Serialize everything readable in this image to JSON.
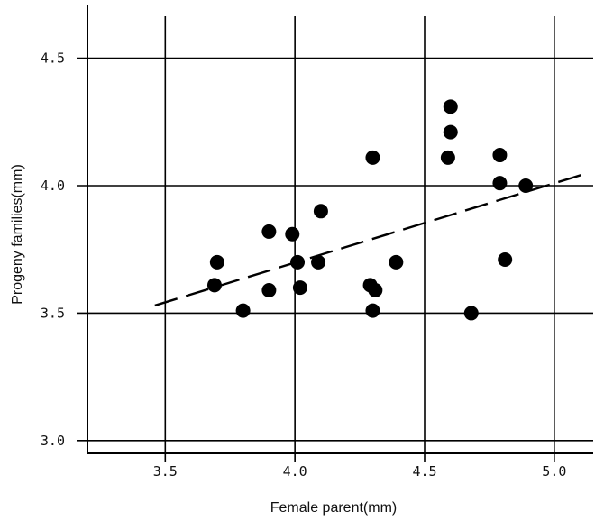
{
  "chart_data": {
    "type": "scatter",
    "title": "",
    "xlabel": "Female parent(mm)",
    "ylabel": "Progeny families(mm)",
    "xlim": [
      3.2,
      5.15
    ],
    "ylim": [
      2.95,
      4.7
    ],
    "xticks": [
      3.5,
      4.0,
      4.5,
      5.0
    ],
    "xtick_labels": [
      "3.5",
      "4.0",
      "4.5",
      "5.0"
    ],
    "yticks": [
      3.0,
      3.5,
      4.0,
      4.5
    ],
    "ytick_labels": [
      "3.0",
      "3.5",
      "4.0",
      "4.5"
    ],
    "grid": true,
    "legend": "none",
    "marker_color": "#000000",
    "points": [
      {
        "x": 3.7,
        "y": 3.7
      },
      {
        "x": 3.69,
        "y": 3.61
      },
      {
        "x": 3.8,
        "y": 3.51
      },
      {
        "x": 3.9,
        "y": 3.82
      },
      {
        "x": 3.9,
        "y": 3.59
      },
      {
        "x": 3.99,
        "y": 3.81
      },
      {
        "x": 4.01,
        "y": 3.7
      },
      {
        "x": 4.02,
        "y": 3.6
      },
      {
        "x": 4.1,
        "y": 3.9
      },
      {
        "x": 4.09,
        "y": 3.7
      },
      {
        "x": 4.3,
        "y": 4.11
      },
      {
        "x": 4.29,
        "y": 3.61
      },
      {
        "x": 4.31,
        "y": 3.59
      },
      {
        "x": 4.3,
        "y": 3.51
      },
      {
        "x": 4.39,
        "y": 3.7
      },
      {
        "x": 4.6,
        "y": 4.31
      },
      {
        "x": 4.6,
        "y": 4.21
      },
      {
        "x": 4.59,
        "y": 4.11
      },
      {
        "x": 4.68,
        "y": 3.5
      },
      {
        "x": 4.79,
        "y": 4.12
      },
      {
        "x": 4.79,
        "y": 4.01
      },
      {
        "x": 4.81,
        "y": 3.71
      },
      {
        "x": 4.89,
        "y": 4.0
      }
    ],
    "regression_line": {
      "x": [
        3.46,
        5.13
      ],
      "y": [
        3.53,
        4.05
      ],
      "style": "dashed"
    }
  }
}
